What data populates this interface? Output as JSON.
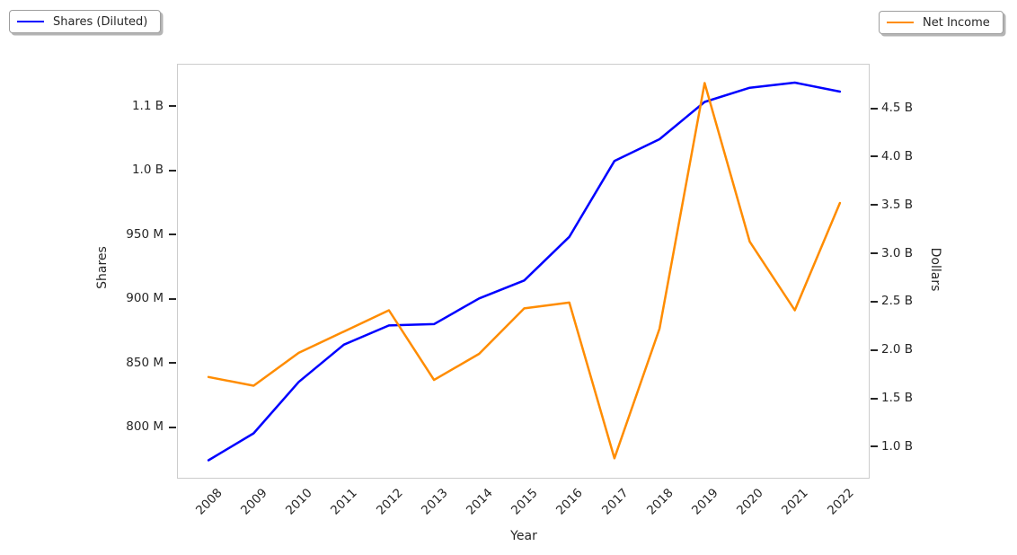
{
  "figure": {
    "background": "#ffffff"
  },
  "legends": {
    "shares": {
      "label": "Shares (Diluted)",
      "color": "#0000ff",
      "position": "upper-left"
    },
    "net_income": {
      "label": "Net Income",
      "color": "#ff8c00",
      "position": "upper-right"
    }
  },
  "axes": {
    "x_label": "Year",
    "y_left_label": "Shares",
    "y_right_label": "Dollars",
    "y_left_ticks": [
      {
        "value": 800,
        "label": "800 M"
      },
      {
        "value": 850,
        "label": "850 M"
      },
      {
        "value": 900,
        "label": "900 M"
      },
      {
        "value": 950,
        "label": "950 M"
      },
      {
        "value": 1000,
        "label": "1.0 B"
      },
      {
        "value": 1050,
        "label": "1.1 B"
      }
    ],
    "y_right_ticks": [
      {
        "value": 1.0,
        "label": "1.0 B"
      },
      {
        "value": 1.5,
        "label": "1.5 B"
      },
      {
        "value": 2.0,
        "label": "2.0 B"
      },
      {
        "value": 2.5,
        "label": "2.5 B"
      },
      {
        "value": 3.0,
        "label": "3.0 B"
      },
      {
        "value": 3.5,
        "label": "3.5 B"
      },
      {
        "value": 4.0,
        "label": "4.0 B"
      },
      {
        "value": 4.5,
        "label": "4.5 B"
      }
    ]
  },
  "chart_data": {
    "type": "line",
    "title": "",
    "xlabel": "Year",
    "x": [
      2008,
      2009,
      2010,
      2011,
      2012,
      2013,
      2014,
      2015,
      2016,
      2017,
      2018,
      2019,
      2020,
      2021,
      2022
    ],
    "x_tick_labels": [
      "2008",
      "2009",
      "2010",
      "2011",
      "2012",
      "2013",
      "2014",
      "2015",
      "2016",
      "2017",
      "2018",
      "2019",
      "2020",
      "2021",
      "2022"
    ],
    "x_margin_units": 0.68,
    "grid": false,
    "series": [
      {
        "name": "Shares (Diluted)",
        "axis": "left",
        "color": "#0000ff",
        "unit": "shares",
        "values_millions": [
          775,
          796,
          836,
          865,
          880,
          881,
          901,
          915,
          949,
          1008,
          1025,
          1054,
          1065,
          1069,
          1062
        ]
      },
      {
        "name": "Net Income",
        "axis": "right",
        "color": "#ff8c00",
        "unit": "dollars",
        "values_billions": [
          1.73,
          1.64,
          1.98,
          2.2,
          2.42,
          1.7,
          1.97,
          2.44,
          2.5,
          0.89,
          2.23,
          4.77,
          3.13,
          2.42,
          3.53
        ]
      }
    ],
    "y_left": {
      "label": "Shares",
      "unit": "millions",
      "range_millions": [
        760,
        1083
      ]
    },
    "y_right": {
      "label": "Dollars",
      "unit": "billions",
      "range_billions": [
        0.67,
        4.96
      ]
    },
    "legend_positions": [
      "upper-left-outside",
      "upper-right-outside"
    ]
  }
}
